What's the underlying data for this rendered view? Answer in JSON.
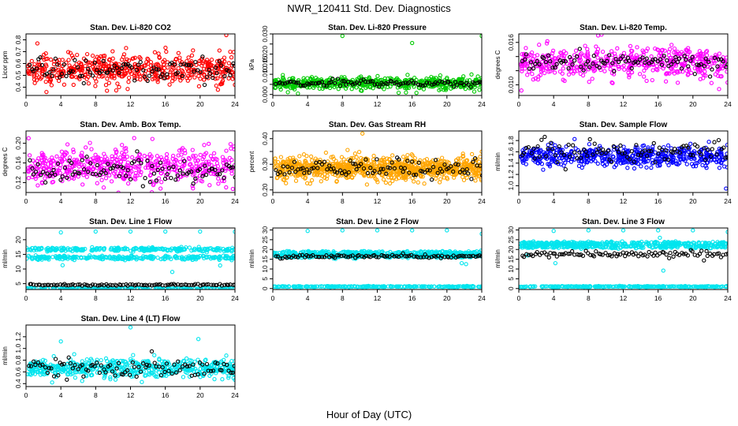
{
  "figure": {
    "title": "NWR_120411  Std. Dev. Diagnostics",
    "xlabel": "Hour of Day (UTC)"
  },
  "chart_data": [
    {
      "type": "scatter",
      "title": "Stan. Dev. Li-820 CO2",
      "ylabel": "Licor ppm",
      "xlim": [
        0,
        24
      ],
      "xticks": [
        0,
        4,
        8,
        12,
        16,
        20,
        24
      ],
      "ylim": [
        0.33,
        0.85
      ],
      "yticks": [
        0.4,
        0.5,
        0.6,
        0.7,
        0.8
      ],
      "ytick_labels": [
        "0.4",
        "0.5",
        "0.6",
        "0.7",
        "0.8"
      ],
      "series": [
        {
          "color": "#ff0000",
          "center": 0.55,
          "spread": 0.065,
          "count": 520,
          "outliers": [
            [
              1.3,
              0.77
            ],
            [
              9.3,
              0.37
            ],
            [
              10.5,
              0.43
            ],
            [
              16.1,
              0.7
            ],
            [
              23.0,
              0.84
            ],
            [
              24.0,
              0.42
            ]
          ]
        },
        {
          "color": "#000000",
          "center": 0.55,
          "spread": 0.045,
          "count": 95
        }
      ]
    },
    {
      "type": "scatter",
      "title": "Stan. Dev. Li-820 Pressure",
      "ylabel": "kPa",
      "xlim": [
        0,
        24
      ],
      "xticks": [
        0,
        4,
        8,
        12,
        16,
        20,
        24
      ],
      "ylim": [
        -0.0005,
        0.03
      ],
      "yticks": [
        0,
        0.005,
        0.01,
        0.015,
        0.02,
        0.025,
        0.03
      ],
      "ytick_labels": [
        "0.000",
        "",
        "0.010",
        "0.015",
        "0.020",
        "",
        "0.030"
      ],
      "series": [
        {
          "color": "#00cc00",
          "center": 0.0055,
          "spread": 0.0015,
          "count": 520,
          "outliers": [
            [
              8.0,
              0.029
            ],
            [
              16.0,
              0.0255
            ],
            [
              24.0,
              0.029
            ],
            [
              15.3,
              0.001
            ],
            [
              16.5,
              0.0008
            ]
          ]
        },
        {
          "color": "#000000",
          "center": 0.0058,
          "spread": 0.0008,
          "count": 95
        }
      ]
    },
    {
      "type": "scatter",
      "title": "Stan. Dev. Li-820 Temp.",
      "ylabel": "degrees C",
      "xlim": [
        0,
        24
      ],
      "xticks": [
        0,
        4,
        8,
        12,
        16,
        20,
        24
      ],
      "ylim": [
        0.0085,
        0.0172
      ],
      "yticks": [
        0.01,
        0.012,
        0.014,
        0.016
      ],
      "ytick_labels": [
        "0.010",
        "",
        "",
        "0.016"
      ],
      "series": [
        {
          "color": "#ff00ff",
          "center": 0.0131,
          "spread": 0.0011,
          "count": 520,
          "outliers": [
            [
              9.5,
              0.0171
            ],
            [
              0.3,
              0.0092
            ],
            [
              23.0,
              0.0094
            ]
          ]
        },
        {
          "color": "#000000",
          "center": 0.0132,
          "spread": 0.0007,
          "count": 95
        }
      ]
    },
    {
      "type": "scatter",
      "title": "Stan. Dev. Amb. Box Temp.",
      "ylabel": "degrees C",
      "xlim": [
        0,
        24
      ],
      "xticks": [
        0,
        4,
        8,
        12,
        16,
        20,
        24
      ],
      "ylim": [
        0.1,
        0.225
      ],
      "yticks": [
        0.12,
        0.14,
        0.16,
        0.18,
        0.2
      ],
      "ytick_labels": [
        "0.12",
        "",
        "0.16",
        "",
        "0.20"
      ],
      "series": [
        {
          "color": "#ff00ff",
          "center": 0.153,
          "spread": 0.019,
          "count": 520
        },
        {
          "color": "#000000",
          "center": 0.145,
          "spread": 0.012,
          "count": 95
        }
      ]
    },
    {
      "type": "scatter",
      "title": "Stan. Dev. Gas Stream RH",
      "ylabel": "percent",
      "xlim": [
        0,
        24
      ],
      "xticks": [
        0,
        4,
        8,
        12,
        16,
        20,
        24
      ],
      "ylim": [
        0.19,
        0.43
      ],
      "yticks": [
        0.2,
        0.25,
        0.3,
        0.35,
        0.4
      ],
      "ytick_labels": [
        "0.20",
        "",
        "0.30",
        "",
        "0.40"
      ],
      "series": [
        {
          "color": "#ffa500",
          "center": 0.283,
          "spread": 0.022,
          "count": 900,
          "outliers": [
            [
              10.3,
              0.42
            ]
          ]
        },
        {
          "color": "#000000",
          "center": 0.283,
          "spread": 0.018,
          "count": 95
        }
      ]
    },
    {
      "type": "scatter",
      "title": "Stan. Dev. Sample Flow",
      "ylabel": "ml/min",
      "xlim": [
        0,
        24
      ],
      "xticks": [
        0,
        4,
        8,
        12,
        16,
        20,
        24
      ],
      "ylim": [
        0.88,
        1.97
      ],
      "yticks": [
        1.0,
        1.2,
        1.4,
        1.6,
        1.8
      ],
      "ytick_labels": [
        "1.0",
        "1.2",
        "1.4",
        "1.6",
        "1.8"
      ],
      "series": [
        {
          "color": "#0000ff",
          "center": 1.52,
          "spread": 0.09,
          "count": 520,
          "outliers": [
            [
              23.8,
              0.95
            ]
          ]
        },
        {
          "color": "#000000",
          "center": 1.6,
          "spread": 0.1,
          "count": 95
        }
      ]
    },
    {
      "type": "scatter",
      "title": "Stan. Dev. Line 1 Flow",
      "ylabel": "ml/min",
      "xlim": [
        0,
        24
      ],
      "xticks": [
        0,
        4,
        8,
        12,
        16,
        20,
        24
      ],
      "ylim": [
        3.0,
        24.0
      ],
      "yticks": [
        5,
        10,
        15,
        20
      ],
      "ytick_labels": [
        "5",
        "10",
        "15",
        "20"
      ],
      "series": [
        {
          "color": "#00e5ee",
          "bands": [
            [
              16.7,
              0.55
            ],
            [
              13.9,
              0.55
            ],
            [
              3.3,
              0.15
            ]
          ],
          "count": 260,
          "outliers": [
            [
              4.0,
              22.5
            ],
            [
              8.0,
              22.8
            ],
            [
              12.0,
              22.8
            ],
            [
              16.0,
              22.8
            ],
            [
              20.0,
              22.8
            ],
            [
              24.0,
              22.7
            ],
            [
              4.2,
              11.3
            ],
            [
              16.8,
              9.0
            ],
            [
              22.3,
              11.2
            ]
          ]
        },
        {
          "color": "#000000",
          "center": 4.6,
          "spread": 0.18,
          "count": 95
        }
      ]
    },
    {
      "type": "scatter",
      "title": "Stan. Dev. Line 2 Flow",
      "ylabel": "ml/min",
      "xlim": [
        0,
        24
      ],
      "xticks": [
        0,
        4,
        8,
        12,
        16,
        20,
        24
      ],
      "ylim": [
        -0.5,
        31.0
      ],
      "yticks": [
        0,
        5,
        10,
        15,
        20,
        25,
        30
      ],
      "ytick_labels": [
        "0",
        "5",
        "10",
        "15",
        "20",
        "25",
        "30"
      ],
      "series": [
        {
          "color": "#00e5ee",
          "bands": [
            [
              18.3,
              0.7
            ],
            [
              16.6,
              0.7
            ],
            [
              1.0,
              0.2
            ]
          ],
          "count": 260,
          "outliers": [
            [
              4.0,
              29.5
            ],
            [
              8.0,
              29.8
            ],
            [
              12.0,
              29.8
            ],
            [
              16.0,
              29.8
            ],
            [
              20.0,
              29.8
            ],
            [
              24.0,
              28.0
            ],
            [
              21.7,
              13.0
            ],
            [
              22.2,
              12.5
            ]
          ]
        },
        {
          "color": "#000000",
          "center": 16.5,
          "spread": 0.4,
          "count": 95
        }
      ]
    },
    {
      "type": "scatter",
      "title": "Stan. Dev. Line 3 Flow",
      "ylabel": "ml/min",
      "xlim": [
        0,
        24
      ],
      "xticks": [
        0,
        4,
        8,
        12,
        16,
        20,
        24
      ],
      "ylim": [
        -0.5,
        31.0
      ],
      "yticks": [
        0,
        5,
        10,
        15,
        20,
        25,
        30
      ],
      "ytick_labels": [
        "0",
        "5",
        "10",
        "15",
        "20",
        "25",
        "30"
      ],
      "series": [
        {
          "color": "#00e5ee",
          "bands": [
            [
              23.2,
              0.7
            ],
            [
              21.5,
              0.7
            ],
            [
              1.0,
              0.2
            ]
          ],
          "count": 260,
          "outliers": [
            [
              4.0,
              29.5
            ],
            [
              8.0,
              29.8
            ],
            [
              12.0,
              29.8
            ],
            [
              16.0,
              29.8
            ],
            [
              20.0,
              29.8
            ],
            [
              24.0,
              29.0
            ],
            [
              4.2,
              13.0
            ],
            [
              16.6,
              9.2
            ],
            [
              1.0,
              17.0
            ],
            [
              16.2,
              26.0
            ]
          ]
        },
        {
          "color": "#000000",
          "center": 17.5,
          "spread": 0.8,
          "count": 95
        }
      ]
    },
    {
      "type": "scatter",
      "title": "Stan. Dev. Line 4 (LT) Flow",
      "ylabel": "ml/min",
      "xlim": [
        0,
        24
      ],
      "xticks": [
        0,
        4,
        8,
        12,
        16,
        20,
        24
      ],
      "ylim": [
        0.35,
        1.4
      ],
      "yticks": [
        0.4,
        0.6,
        0.8,
        1.0,
        1.2
      ],
      "ytick_labels": [
        "0.4",
        "0.6",
        "0.8",
        "1.0",
        "1.2"
      ],
      "series": [
        {
          "color": "#00e5ee",
          "center": 0.66,
          "spread": 0.08,
          "count": 520,
          "outliers": [
            [
              4.0,
              1.12
            ],
            [
              12.0,
              1.36
            ],
            [
              19.8,
              1.16
            ],
            [
              3.0,
              0.42
            ]
          ]
        },
        {
          "color": "#000000",
          "center": 0.66,
          "spread": 0.08,
          "count": 95
        }
      ]
    }
  ]
}
